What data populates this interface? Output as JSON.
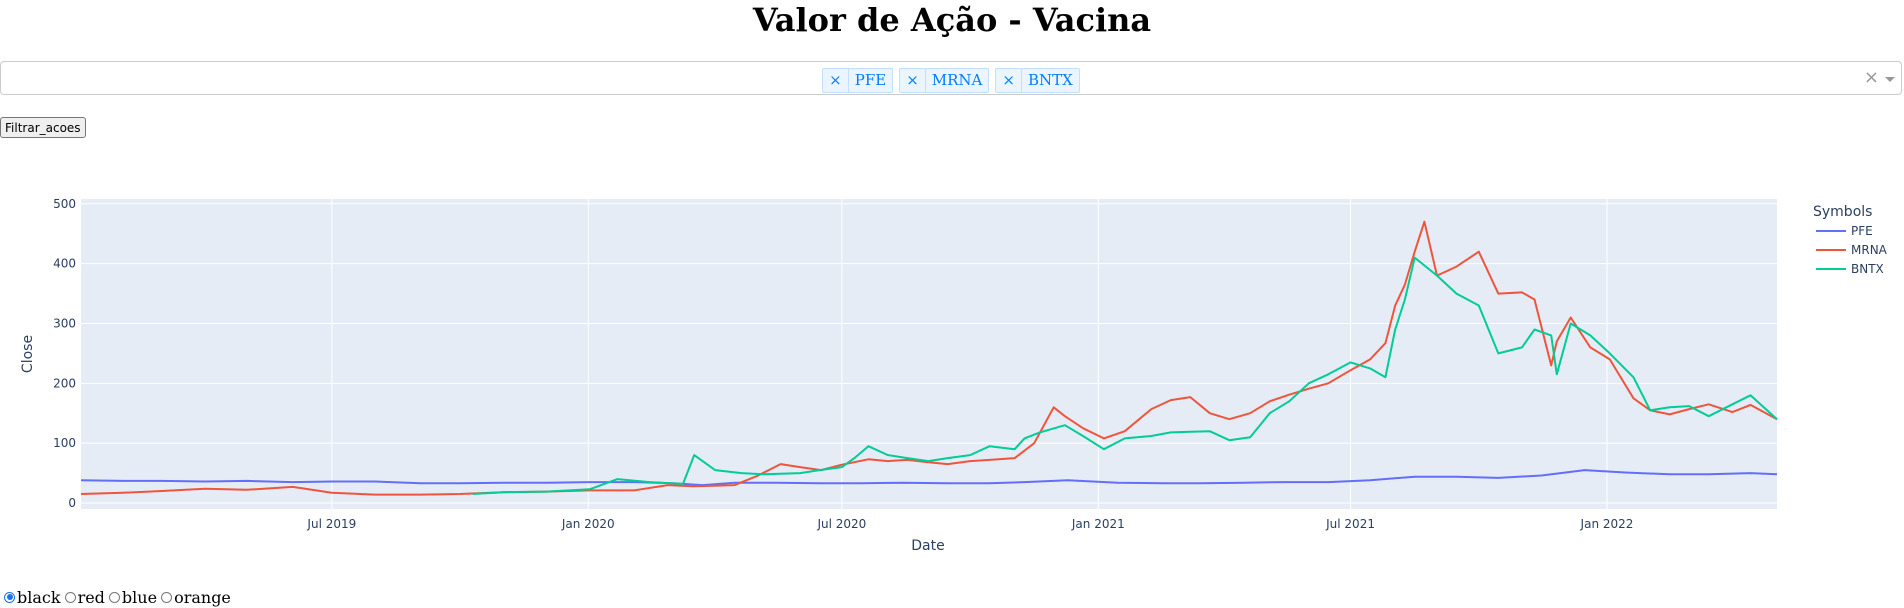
{
  "title": "Valor de Ação - Vacina",
  "dropdown": {
    "selected": [
      "PFE",
      "MRNA",
      "BNTX"
    ],
    "remove_glyph": "×",
    "clear_glyph": "×"
  },
  "filter_button": "Filtrar_acoes",
  "radios": {
    "options": [
      "black",
      "red",
      "blue",
      "orange"
    ],
    "selected": "black"
  },
  "chart_data": {
    "type": "line",
    "xlabel": "Date",
    "ylabel": "Close",
    "x_range": [
      "2019-01-02",
      "2022-05-03"
    ],
    "y_range": [
      -10,
      508
    ],
    "y_ticks": [
      0,
      100,
      200,
      300,
      400,
      500
    ],
    "x_ticks": [
      {
        "date": "2019-07-01",
        "label": "Jul 2019"
      },
      {
        "date": "2020-01-01",
        "label": "Jan 2020"
      },
      {
        "date": "2020-07-01",
        "label": "Jul 2020"
      },
      {
        "date": "2021-01-01",
        "label": "Jan 2021"
      },
      {
        "date": "2021-07-01",
        "label": "Jul 2021"
      },
      {
        "date": "2022-01-01",
        "label": "Jan 2022"
      }
    ],
    "grid": true,
    "legend": {
      "title": "Symbols",
      "position": "top-right"
    },
    "series": [
      {
        "name": "PFE",
        "color": "#636efa",
        "x": [
          "2019-01-02",
          "2019-02-01",
          "2019-03-01",
          "2019-04-01",
          "2019-05-01",
          "2019-06-03",
          "2019-07-01",
          "2019-08-01",
          "2019-09-03",
          "2019-10-01",
          "2019-11-01",
          "2019-12-02",
          "2020-01-02",
          "2020-02-03",
          "2020-03-02",
          "2020-03-23",
          "2020-04-15",
          "2020-05-15",
          "2020-06-15",
          "2020-07-15",
          "2020-08-14",
          "2020-09-15",
          "2020-10-15",
          "2020-11-09",
          "2020-12-10",
          "2021-01-15",
          "2021-02-16",
          "2021-03-15",
          "2021-04-15",
          "2021-05-14",
          "2021-06-15",
          "2021-07-15",
          "2021-08-16",
          "2021-09-15",
          "2021-10-15",
          "2021-11-15",
          "2021-12-16",
          "2022-01-14",
          "2022-02-15",
          "2022-03-15",
          "2022-04-14",
          "2022-05-03"
        ],
        "y": [
          38,
          37,
          37,
          36,
          37,
          35,
          36,
          36,
          33,
          33,
          34,
          34,
          35,
          35,
          33,
          30,
          34,
          34,
          33,
          33,
          34,
          33,
          33,
          35,
          38,
          34,
          33,
          33,
          34,
          35,
          35,
          38,
          44,
          44,
          42,
          46,
          55,
          51,
          48,
          48,
          50,
          48
        ]
      },
      {
        "name": "MRNA",
        "color": "#ef553b",
        "x": [
          "2019-01-02",
          "2019-02-01",
          "2019-03-01",
          "2019-04-01",
          "2019-05-01",
          "2019-06-03",
          "2019-07-01",
          "2019-08-01",
          "2019-09-03",
          "2019-10-01",
          "2019-11-01",
          "2019-12-02",
          "2020-01-02",
          "2020-02-03",
          "2020-02-27",
          "2020-03-16",
          "2020-03-31",
          "2020-04-15",
          "2020-05-01",
          "2020-05-18",
          "2020-06-01",
          "2020-06-16",
          "2020-07-01",
          "2020-07-20",
          "2020-08-03",
          "2020-08-17",
          "2020-09-01",
          "2020-09-15",
          "2020-10-01",
          "2020-10-15",
          "2020-11-02",
          "2020-11-16",
          "2020-11-30",
          "2020-12-08",
          "2020-12-21",
          "2021-01-05",
          "2021-01-20",
          "2021-02-08",
          "2021-02-22",
          "2021-03-08",
          "2021-03-22",
          "2021-04-05",
          "2021-04-20",
          "2021-05-04",
          "2021-05-18",
          "2021-06-01",
          "2021-06-15",
          "2021-07-01",
          "2021-07-15",
          "2021-07-26",
          "2021-08-02",
          "2021-08-09",
          "2021-08-16",
          "2021-08-23",
          "2021-09-01",
          "2021-09-15",
          "2021-10-01",
          "2021-10-15",
          "2021-11-01",
          "2021-11-10",
          "2021-11-22",
          "2021-11-26",
          "2021-12-06",
          "2021-12-20",
          "2022-01-03",
          "2022-01-20",
          "2022-02-01",
          "2022-02-15",
          "2022-03-01",
          "2022-03-15",
          "2022-04-01",
          "2022-04-14",
          "2022-05-03"
        ],
        "y": [
          15,
          17,
          20,
          24,
          22,
          27,
          17,
          14,
          14,
          15,
          18,
          19,
          21,
          21,
          30,
          28,
          29,
          30,
          45,
          65,
          60,
          55,
          64,
          73,
          70,
          72,
          68,
          65,
          70,
          72,
          75,
          100,
          160,
          145,
          125,
          108,
          120,
          157,
          172,
          177,
          150,
          140,
          150,
          170,
          181,
          191,
          200,
          222,
          240,
          267,
          330,
          365,
          420,
          470,
          380,
          395,
          420,
          350,
          352,
          340,
          230,
          270,
          310,
          260,
          240,
          175,
          155,
          148,
          157,
          165,
          152,
          164,
          140
        ]
      },
      {
        "name": "BNTX",
        "color": "#00cc96",
        "x": [
          "2019-10-10",
          "2019-11-01",
          "2019-12-02",
          "2020-01-02",
          "2020-01-22",
          "2020-02-14",
          "2020-03-09",
          "2020-03-17",
          "2020-04-01",
          "2020-04-20",
          "2020-05-06",
          "2020-06-01",
          "2020-06-15",
          "2020-07-01",
          "2020-07-10",
          "2020-07-20",
          "2020-08-03",
          "2020-08-17",
          "2020-09-01",
          "2020-09-15",
          "2020-10-01",
          "2020-10-15",
          "2020-11-02",
          "2020-11-09",
          "2020-11-20",
          "2020-12-08",
          "2020-12-21",
          "2021-01-05",
          "2021-01-20",
          "2021-02-08",
          "2021-02-22",
          "2021-03-08",
          "2021-03-22",
          "2021-04-05",
          "2021-04-20",
          "2021-05-04",
          "2021-05-18",
          "2021-06-01",
          "2021-06-15",
          "2021-07-01",
          "2021-07-15",
          "2021-07-26",
          "2021-08-02",
          "2021-08-09",
          "2021-08-16",
          "2021-09-01",
          "2021-09-15",
          "2021-10-01",
          "2021-10-15",
          "2021-11-01",
          "2021-11-10",
          "2021-11-22",
          "2021-11-26",
          "2021-12-06",
          "2021-12-20",
          "2022-01-03",
          "2022-01-20",
          "2022-02-01",
          "2022-02-15",
          "2022-03-01",
          "2022-03-15",
          "2022-04-01",
          "2022-04-14",
          "2022-05-03"
        ],
        "y": [
          15,
          18,
          19,
          23,
          40,
          35,
          32,
          80,
          55,
          50,
          48,
          50,
          55,
          60,
          75,
          95,
          80,
          75,
          70,
          75,
          80,
          95,
          90,
          108,
          118,
          130,
          112,
          90,
          108,
          112,
          118,
          119,
          120,
          105,
          110,
          150,
          170,
          200,
          215,
          235,
          225,
          210,
          290,
          340,
          410,
          380,
          350,
          330,
          250,
          260,
          290,
          280,
          215,
          300,
          280,
          250,
          210,
          155,
          160,
          162,
          145,
          165,
          180,
          140
        ]
      }
    ]
  }
}
